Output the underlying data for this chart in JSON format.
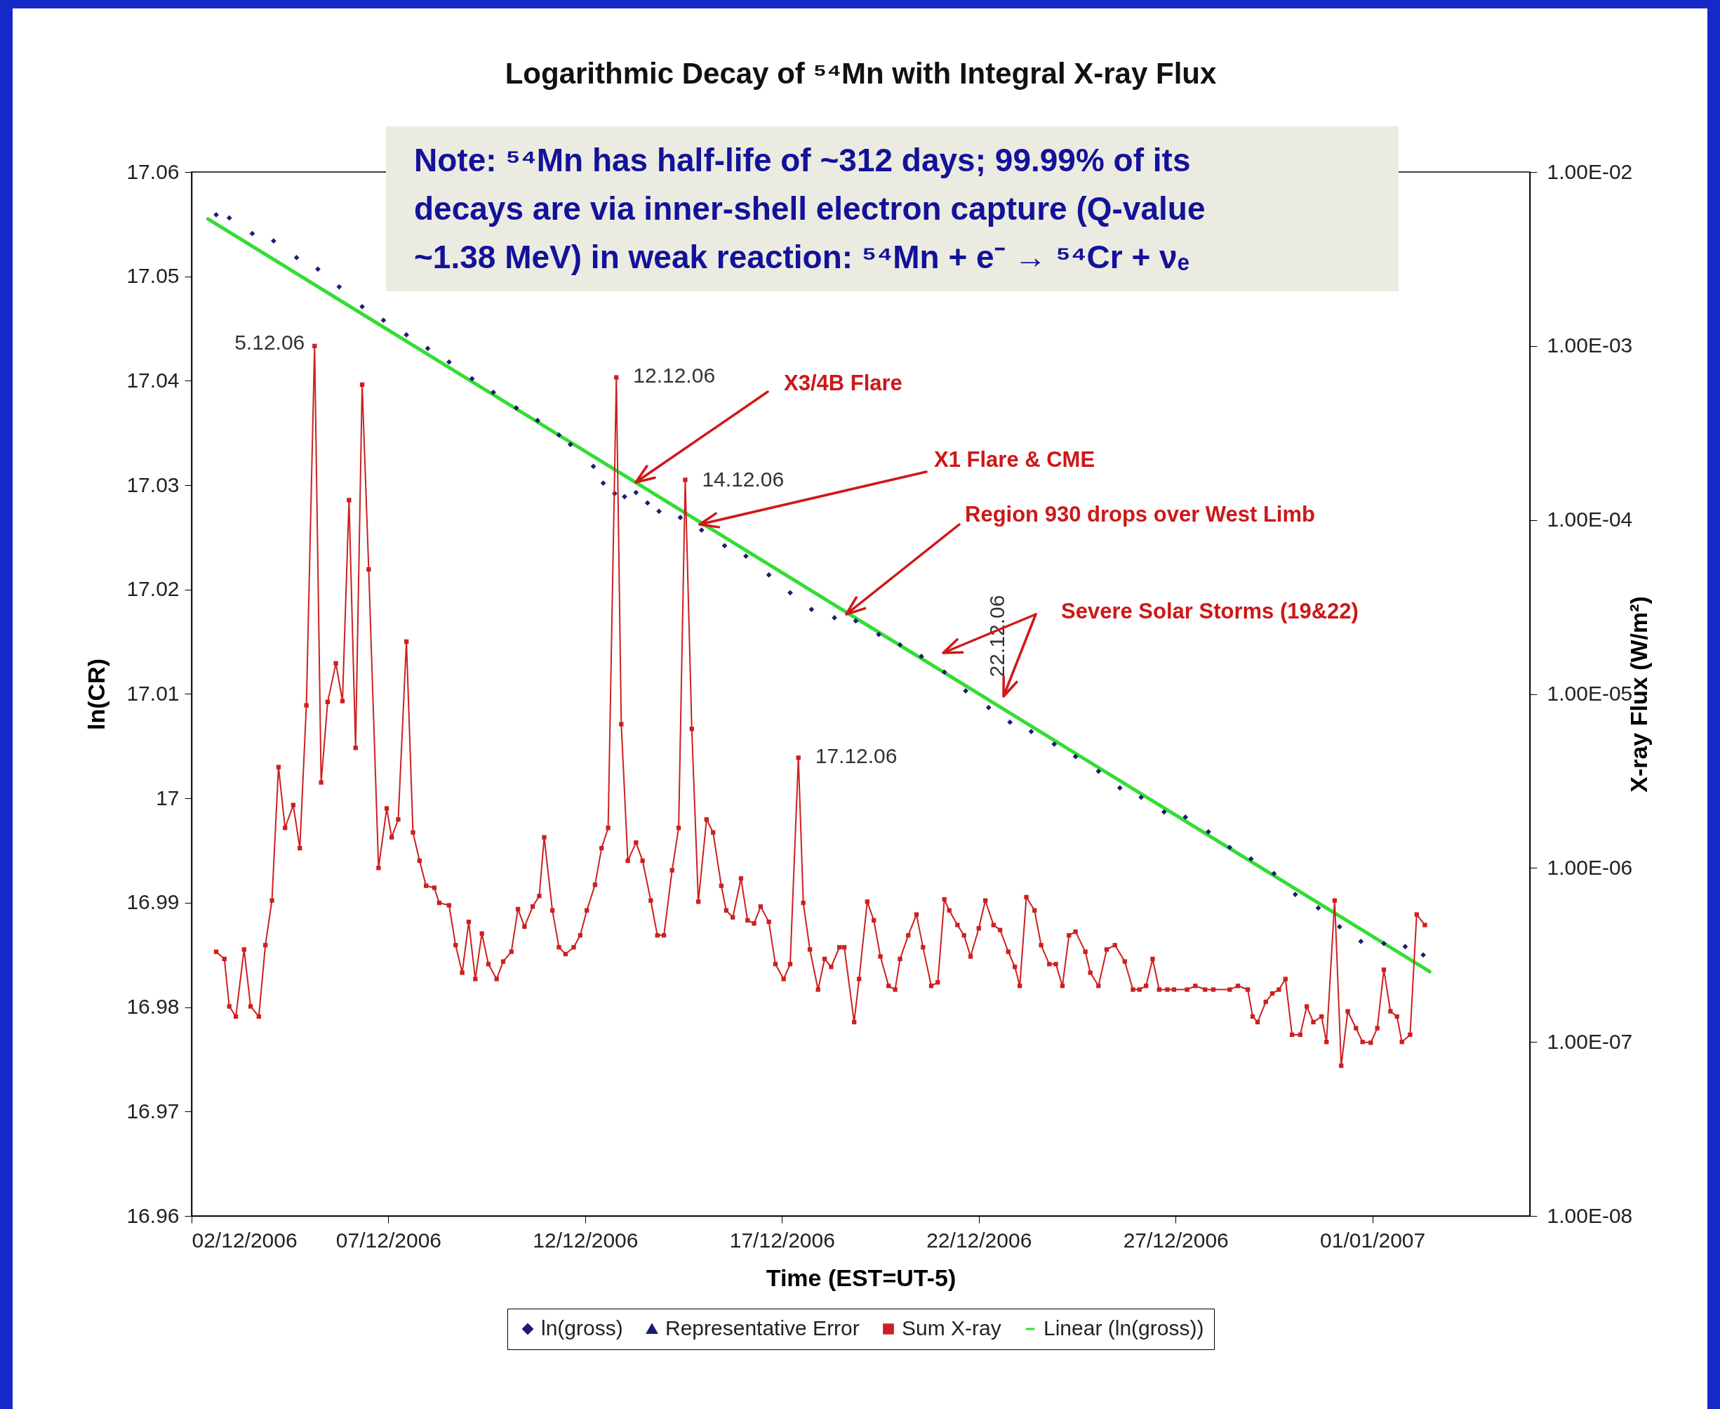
{
  "chart_data": {
    "type": "line",
    "title": "Logarithmic Decay of ⁵⁴Mn with Integral X-ray Flux",
    "xlabel": "Time (EST=UT-5)",
    "ylabel": "ln(CR)",
    "y2label": "X-ray Flux (W/m²)",
    "xlim": [
      "2006-12-02",
      "2007-01-05"
    ],
    "xticks": [
      {
        "value": "2006-12-02",
        "label": "02/12/2006"
      },
      {
        "value": "2006-12-07",
        "label": "07/12/2006"
      },
      {
        "value": "2006-12-12",
        "label": "12/12/2006"
      },
      {
        "value": "2006-12-17",
        "label": "17/12/2006"
      },
      {
        "value": "2006-12-22",
        "label": "22/12/2006"
      },
      {
        "value": "2006-12-27",
        "label": "27/12/2006"
      },
      {
        "value": "2007-01-01",
        "label": "01/01/2007"
      }
    ],
    "ylim": [
      16.96,
      17.06
    ],
    "yticks": [
      16.96,
      16.97,
      16.98,
      16.99,
      17,
      17.01,
      17.02,
      17.03,
      17.04,
      17.05,
      17.06
    ],
    "y2lim": [
      1e-08,
      0.01
    ],
    "y2ticks": [
      {
        "value": 1e-08,
        "label": "1.00E-08"
      },
      {
        "value": 1e-07,
        "label": "1.00E-07"
      },
      {
        "value": 1e-06,
        "label": "1.00E-06"
      },
      {
        "value": 1e-05,
        "label": "1.00E-05"
      },
      {
        "value": 0.0001,
        "label": "1.00E-04"
      },
      {
        "value": 0.001,
        "label": "1.00E-03"
      },
      {
        "value": 0.01,
        "label": "1.00E-02"
      }
    ],
    "log": "y2",
    "grid": false,
    "legend": "bottom",
    "series": [
      {
        "name": "ln(gross)",
        "type": "scatter",
        "color": "#1c1c70",
        "marker": "diamond",
        "x": [
          "2006-12-02T15:00",
          "2006-12-02T23:00",
          "2006-12-03T13:00",
          "2006-12-04T02:00",
          "2006-12-04T16:00",
          "2006-12-05T05:00",
          "2006-12-05T18:00",
          "2006-12-06T08:00",
          "2006-12-06T21:00",
          "2006-12-07T11:00",
          "2006-12-08T00:00",
          "2006-12-08T13:00",
          "2006-12-09T03:00",
          "2006-12-09T16:00",
          "2006-12-10T06:00",
          "2006-12-10T19:00",
          "2006-12-11T08:00",
          "2006-12-11T15:00",
          "2006-12-12T05:00",
          "2006-12-12T11:00",
          "2006-12-12T18:00",
          "2006-12-13T00:00",
          "2006-12-13T07:00",
          "2006-12-13T14:00",
          "2006-12-13T21:00",
          "2006-12-14T10:00",
          "2006-12-14T23:00",
          "2006-12-15T13:00",
          "2006-12-16T02:00",
          "2006-12-16T16:00",
          "2006-12-17T05:00",
          "2006-12-17T18:00",
          "2006-12-18T08:00",
          "2006-12-18T21:00",
          "2006-12-19T11:00",
          "2006-12-20T00:00",
          "2006-12-20T13:00",
          "2006-12-21T03:00",
          "2006-12-21T16:00",
          "2006-12-22T06:00",
          "2006-12-22T19:00",
          "2006-12-23T08:00",
          "2006-12-23T22:00",
          "2006-12-24T11:00",
          "2006-12-25T01:00",
          "2006-12-25T14:00",
          "2006-12-26T03:00",
          "2006-12-26T17:00",
          "2006-12-27T06:00",
          "2006-12-27T20:00",
          "2006-12-28T09:00",
          "2006-12-28T22:00",
          "2006-12-29T12:00",
          "2006-12-30T01:00",
          "2006-12-30T15:00",
          "2006-12-31T04:00",
          "2006-12-31T17:00",
          "2007-01-01T07:00",
          "2007-01-01T20:00",
          "2007-01-02T07:00"
        ],
        "values": [
          17.0559,
          17.0556,
          17.0541,
          17.0534,
          17.0518,
          17.0507,
          17.049,
          17.0471,
          17.0458,
          17.0444,
          17.0431,
          17.0418,
          17.0402,
          17.0389,
          17.0374,
          17.0362,
          17.0348,
          17.0339,
          17.0318,
          17.0302,
          17.0292,
          17.0289,
          17.0293,
          17.0283,
          17.0275,
          17.0269,
          17.0257,
          17.0242,
          17.0232,
          17.0214,
          17.0197,
          17.0181,
          17.0173,
          17.017,
          17.0157,
          17.0147,
          17.0136,
          17.0121,
          17.0103,
          17.0087,
          17.0073,
          17.0064,
          17.0052,
          17.004,
          17.0026,
          17.001,
          17.0001,
          16.9987,
          16.9982,
          16.9968,
          16.9953,
          16.9942,
          16.9928,
          16.9908,
          16.9895,
          16.9877,
          16.9863,
          16.9861,
          16.9858,
          16.985
        ]
      },
      {
        "name": "Representative Error",
        "color": "#1c1c70",
        "marker": "triangle"
      },
      {
        "name": "Sum X-ray",
        "axis": "y2",
        "color": "#cc2020",
        "marker": "square",
        "x": [
          "2006-12-02T15:00",
          "2006-12-02T20:00",
          "2006-12-02T23:00",
          "2006-12-03T03:00",
          "2006-12-03T08:00",
          "2006-12-03T12:00",
          "2006-12-03T17:00",
          "2006-12-03T21:00",
          "2006-12-04T01:00",
          "2006-12-04T05:00",
          "2006-12-04T09:00",
          "2006-12-04T14:00",
          "2006-12-04T18:00",
          "2006-12-04T22:00",
          "2006-12-05T03:00",
          "2006-12-05T07:00",
          "2006-12-05T11:00",
          "2006-12-05T16:00",
          "2006-12-05T20:00",
          "2006-12-06T00:00",
          "2006-12-06T04:00",
          "2006-12-06T08:00",
          "2006-12-06T12:00",
          "2006-12-06T18:00",
          "2006-12-06T23:00",
          "2006-12-07T02:00",
          "2006-12-07T06:00",
          "2006-12-07T11:00",
          "2006-12-07T15:00",
          "2006-12-07T19:00",
          "2006-12-07T23:00",
          "2006-12-08T04:00",
          "2006-12-08T07:00",
          "2006-12-08T13:00",
          "2006-12-08T17:00",
          "2006-12-08T21:00",
          "2006-12-09T01:00",
          "2006-12-09T05:00",
          "2006-12-09T09:00",
          "2006-12-09T13:00",
          "2006-12-09T18:00",
          "2006-12-09T22:00",
          "2006-12-10T03:00",
          "2006-12-10T07:00",
          "2006-12-10T11:00",
          "2006-12-10T16:00",
          "2006-12-10T20:00",
          "2006-12-10T23:00",
          "2006-12-11T04:00",
          "2006-12-11T08:00",
          "2006-12-11T12:00",
          "2006-12-11T17:00",
          "2006-12-11T21:00",
          "2006-12-12T01:00",
          "2006-12-12T06:00",
          "2006-12-12T10:00",
          "2006-12-12T14:00",
          "2006-12-12T19:00",
          "2006-12-12T22:00",
          "2006-12-13T02:00",
          "2006-12-13T07:00",
          "2006-12-13T11:00",
          "2006-12-13T16:00",
          "2006-12-13T20:00",
          "2006-12-14T00:00",
          "2006-12-14T05:00",
          "2006-12-14T09:00",
          "2006-12-14T13:00",
          "2006-12-14T17:00",
          "2006-12-14T21:00",
          "2006-12-15T02:00",
          "2006-12-15T06:00",
          "2006-12-15T11:00",
          "2006-12-15T14:00",
          "2006-12-15T18:00",
          "2006-12-15T23:00",
          "2006-12-16T03:00",
          "2006-12-16T07:00",
          "2006-12-16T11:00",
          "2006-12-16T16:00",
          "2006-12-16T20:00",
          "2006-12-17T01:00",
          "2006-12-17T05:00",
          "2006-12-17T10:00",
          "2006-12-17T13:00",
          "2006-12-17T17:00",
          "2006-12-17T22:00",
          "2006-12-18T02:00",
          "2006-12-18T06:00",
          "2006-12-18T11:00",
          "2006-12-18T14:00",
          "2006-12-18T20:00",
          "2006-12-18T23:00",
          "2006-12-19T04:00",
          "2006-12-19T08:00",
          "2006-12-19T12:00",
          "2006-12-19T17:00",
          "2006-12-19T21:00",
          "2006-12-20T00:00",
          "2006-12-20T05:00",
          "2006-12-20T10:00",
          "2006-12-20T14:00",
          "2006-12-20T19:00",
          "2006-12-20T23:00",
          "2006-12-21T03:00",
          "2006-12-21T06:00",
          "2006-12-21T11:00",
          "2006-12-21T15:00",
          "2006-12-21T19:00",
          "2006-12-22T00:00",
          "2006-12-22T04:00",
          "2006-12-22T09:00",
          "2006-12-22T13:00",
          "2006-12-22T18:00",
          "2006-12-22T22:00",
          "2006-12-23T01:00",
          "2006-12-23T05:00",
          "2006-12-23T10:00",
          "2006-12-23T14:00",
          "2006-12-23T19:00",
          "2006-12-23T23:00",
          "2006-12-24T03:00",
          "2006-12-24T07:00",
          "2006-12-24T11:00",
          "2006-12-24T17:00",
          "2006-12-24T20:00",
          "2006-12-25T01:00",
          "2006-12-25T06:00",
          "2006-12-25T11:00",
          "2006-12-25T17:00",
          "2006-12-25T22:00",
          "2006-12-26T02:00",
          "2006-12-26T06:00",
          "2006-12-26T10:00",
          "2006-12-26T14:00",
          "2006-12-26T19:00",
          "2006-12-26T23:00",
          "2006-12-27T07:00",
          "2006-12-27T12:00",
          "2006-12-27T18:00",
          "2006-12-27T23:00",
          "2006-12-28T09:00",
          "2006-12-28T14:00",
          "2006-12-28T20:00",
          "2006-12-28T23:00",
          "2006-12-29T02:00",
          "2006-12-29T07:00",
          "2006-12-29T11:00",
          "2006-12-29T15:00",
          "2006-12-29T19:00",
          "2006-12-29T23:00",
          "2006-12-30T04:00",
          "2006-12-30T08:00",
          "2006-12-30T12:00",
          "2006-12-30T17:00",
          "2006-12-30T20:00",
          "2006-12-31T01:00",
          "2006-12-31T05:00",
          "2006-12-31T09:00",
          "2006-12-31T14:00",
          "2006-12-31T18:00",
          "2006-12-31T23:00",
          "2007-01-01T03:00",
          "2007-01-01T07:00",
          "2007-01-01T11:00",
          "2007-01-01T15:00",
          "2007-01-01T18:00",
          "2007-01-01T23:00",
          "2007-01-02T03:00",
          "2007-01-02T08:00"
        ],
        "values": [
          3.3e-07,
          3e-07,
          1.6e-07,
          1.4e-07,
          3.4e-07,
          1.6e-07,
          1.4e-07,
          3.6e-07,
          6.5e-07,
          3.8e-06,
          1.7e-06,
          2.3e-06,
          1.3e-06,
          8.6e-06,
          0.001,
          3.1e-06,
          9e-06,
          1.5e-05,
          9.1e-06,
          0.00013,
          4.9e-06,
          0.0006,
          5.2e-05,
          1e-06,
          2.2e-06,
          1.5e-06,
          1.9e-06,
          2e-05,
          1.6e-06,
          1.1e-06,
          7.9e-07,
          7.7e-07,
          6.3e-07,
          6.1e-07,
          3.6e-07,
          2.5e-07,
          4.9e-07,
          2.3e-07,
          4.2e-07,
          2.8e-07,
          2.3e-07,
          2.9e-07,
          3.3e-07,
          5.8e-07,
          4.6e-07,
          6e-07,
          6.9e-07,
          1.5e-06,
          5.7e-07,
          3.5e-07,
          3.2e-07,
          3.5e-07,
          4.1e-07,
          5.7e-07,
          8e-07,
          1.3e-06,
          1.7e-06,
          0.00066,
          6.7e-06,
          1.1e-06,
          1.4e-06,
          1.1e-06,
          6.5e-07,
          4.1e-07,
          4.1e-07,
          9.7e-07,
          1.7e-06,
          0.00017,
          6.3e-06,
          6.4e-07,
          1.9e-06,
          1.6e-06,
          7.9e-07,
          5.7e-07,
          5.2e-07,
          8.7e-07,
          5e-07,
          4.8e-07,
          6e-07,
          4.9e-07,
          2.8e-07,
          2.3e-07,
          2.8e-07,
          4.3e-06,
          6.3e-07,
          3.4e-07,
          2e-07,
          3e-07,
          2.7e-07,
          3.5e-07,
          3.5e-07,
          1.3e-07,
          2.3e-07,
          6.4e-07,
          5e-07,
          3.1e-07,
          2.1e-07,
          2e-07,
          3e-07,
          4.1e-07,
          5.4e-07,
          3.5e-07,
          2.1e-07,
          2.2e-07,
          6.6e-07,
          5.7e-07,
          4.7e-07,
          4.1e-07,
          3.1e-07,
          4.5e-07,
          6.5e-07,
          4.7e-07,
          4.4e-07,
          3.3e-07,
          2.7e-07,
          2.1e-07,
          6.8e-07,
          5.7e-07,
          3.6e-07,
          2.8e-07,
          2.8e-07,
          2.1e-07,
          4.1e-07,
          4.3e-07,
          3.3e-07,
          2.5e-07,
          2.1e-07,
          3.4e-07,
          3.6e-07,
          2.9e-07,
          2e-07,
          2e-07,
          2.1e-07,
          3e-07,
          2e-07,
          2e-07,
          2e-07,
          2e-07,
          2.1e-07,
          2e-07,
          2e-07,
          2e-07,
          2.1e-07,
          2e-07,
          1.4e-07,
          1.3e-07,
          1.7e-07,
          1.9e-07,
          2e-07,
          2.3e-07,
          1.1e-07,
          1.1e-07,
          1.6e-07,
          1.3e-07,
          1.4e-07,
          1e-07,
          6.5e-07,
          7.3e-08,
          1.5e-07,
          1.2e-07,
          1e-07,
          9.9e-08,
          1.2e-07,
          2.6e-07,
          1.5e-07,
          1.4e-07,
          1e-07,
          1.1e-07,
          5.4e-07,
          4.7e-07
        ]
      },
      {
        "name": "Linear (ln(gross))",
        "color": "#33dd33",
        "marker": "none",
        "x": [
          "2006-12-02T10:00",
          "2007-01-02T11:00"
        ],
        "values": [
          17.0555,
          16.9834
        ]
      }
    ],
    "annotations": [
      "Note: ⁵⁴Mn has half-life of ~312 days; 99.99% of its decays are via inner-shell electron capture (Q-value ~1.38 MeV) in weak reaction: ⁵⁴Mn + e⁻ → ⁵⁴Cr + νₑ",
      {
        "text": "5.12.06",
        "x": "2006-12-05T03:00",
        "y": 17.0436
      },
      {
        "text": "12.12.06",
        "x": "2006-12-12T19:00",
        "y": 17.0404
      },
      {
        "text": "14.12.06",
        "x": "2006-12-14T13:00",
        "y": 17.0305
      },
      {
        "text": "17.12.06",
        "x": "2006-12-17T10:00",
        "y": 17.004
      },
      "22.12.06",
      "X3/4B Flare",
      "X1 Flare & CME",
      "Region 930  drops over West Limb",
      "Severe Solar Storms (19&22)"
    ]
  }
}
